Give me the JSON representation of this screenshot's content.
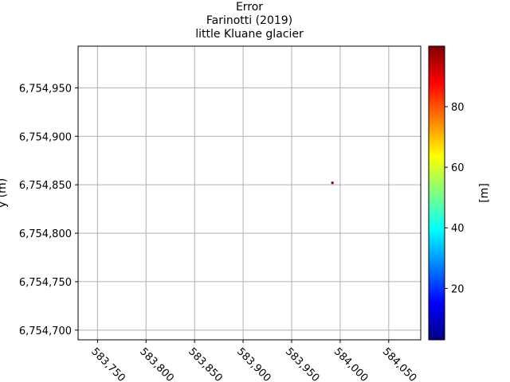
{
  "chart_data": {
    "type": "heatmap",
    "title_lines": [
      "Error",
      "Farinotti (2019)",
      "little Kluane glacier"
    ],
    "xlabel": "",
    "ylabel": "y (m)",
    "xlim": [
      583730,
      584083
    ],
    "ylim": [
      6754690,
      6754993
    ],
    "x_ticks": [
      583750,
      583800,
      583850,
      583900,
      583950,
      584000,
      584050
    ],
    "x_tick_labels": [
      "583,750",
      "583,800",
      "583,850",
      "583,900",
      "583,950",
      "584,000",
      "584,050"
    ],
    "y_ticks": [
      6754700,
      6754750,
      6754800,
      6754850,
      6754900,
      6754950
    ],
    "y_tick_labels": [
      "6,754,700",
      "6,754,750",
      "6,754,800",
      "6,754,850",
      "6,754,900",
      "6,754,950"
    ],
    "grid": true,
    "cells": [
      {
        "x": 583992,
        "y": 6754852,
        "value": 99
      }
    ],
    "colorbar": {
      "label": "[m]",
      "range": [
        3,
        100
      ],
      "ticks": [
        20,
        40,
        60,
        80
      ],
      "tick_labels": [
        "20",
        "40",
        "60",
        "80"
      ],
      "colormap": "jet",
      "colors": [
        "#00007f",
        "#0000ff",
        "#007fff",
        "#00ffff",
        "#7fff7f",
        "#ffff00",
        "#ff7f00",
        "#ff0000",
        "#7f0000"
      ]
    }
  }
}
